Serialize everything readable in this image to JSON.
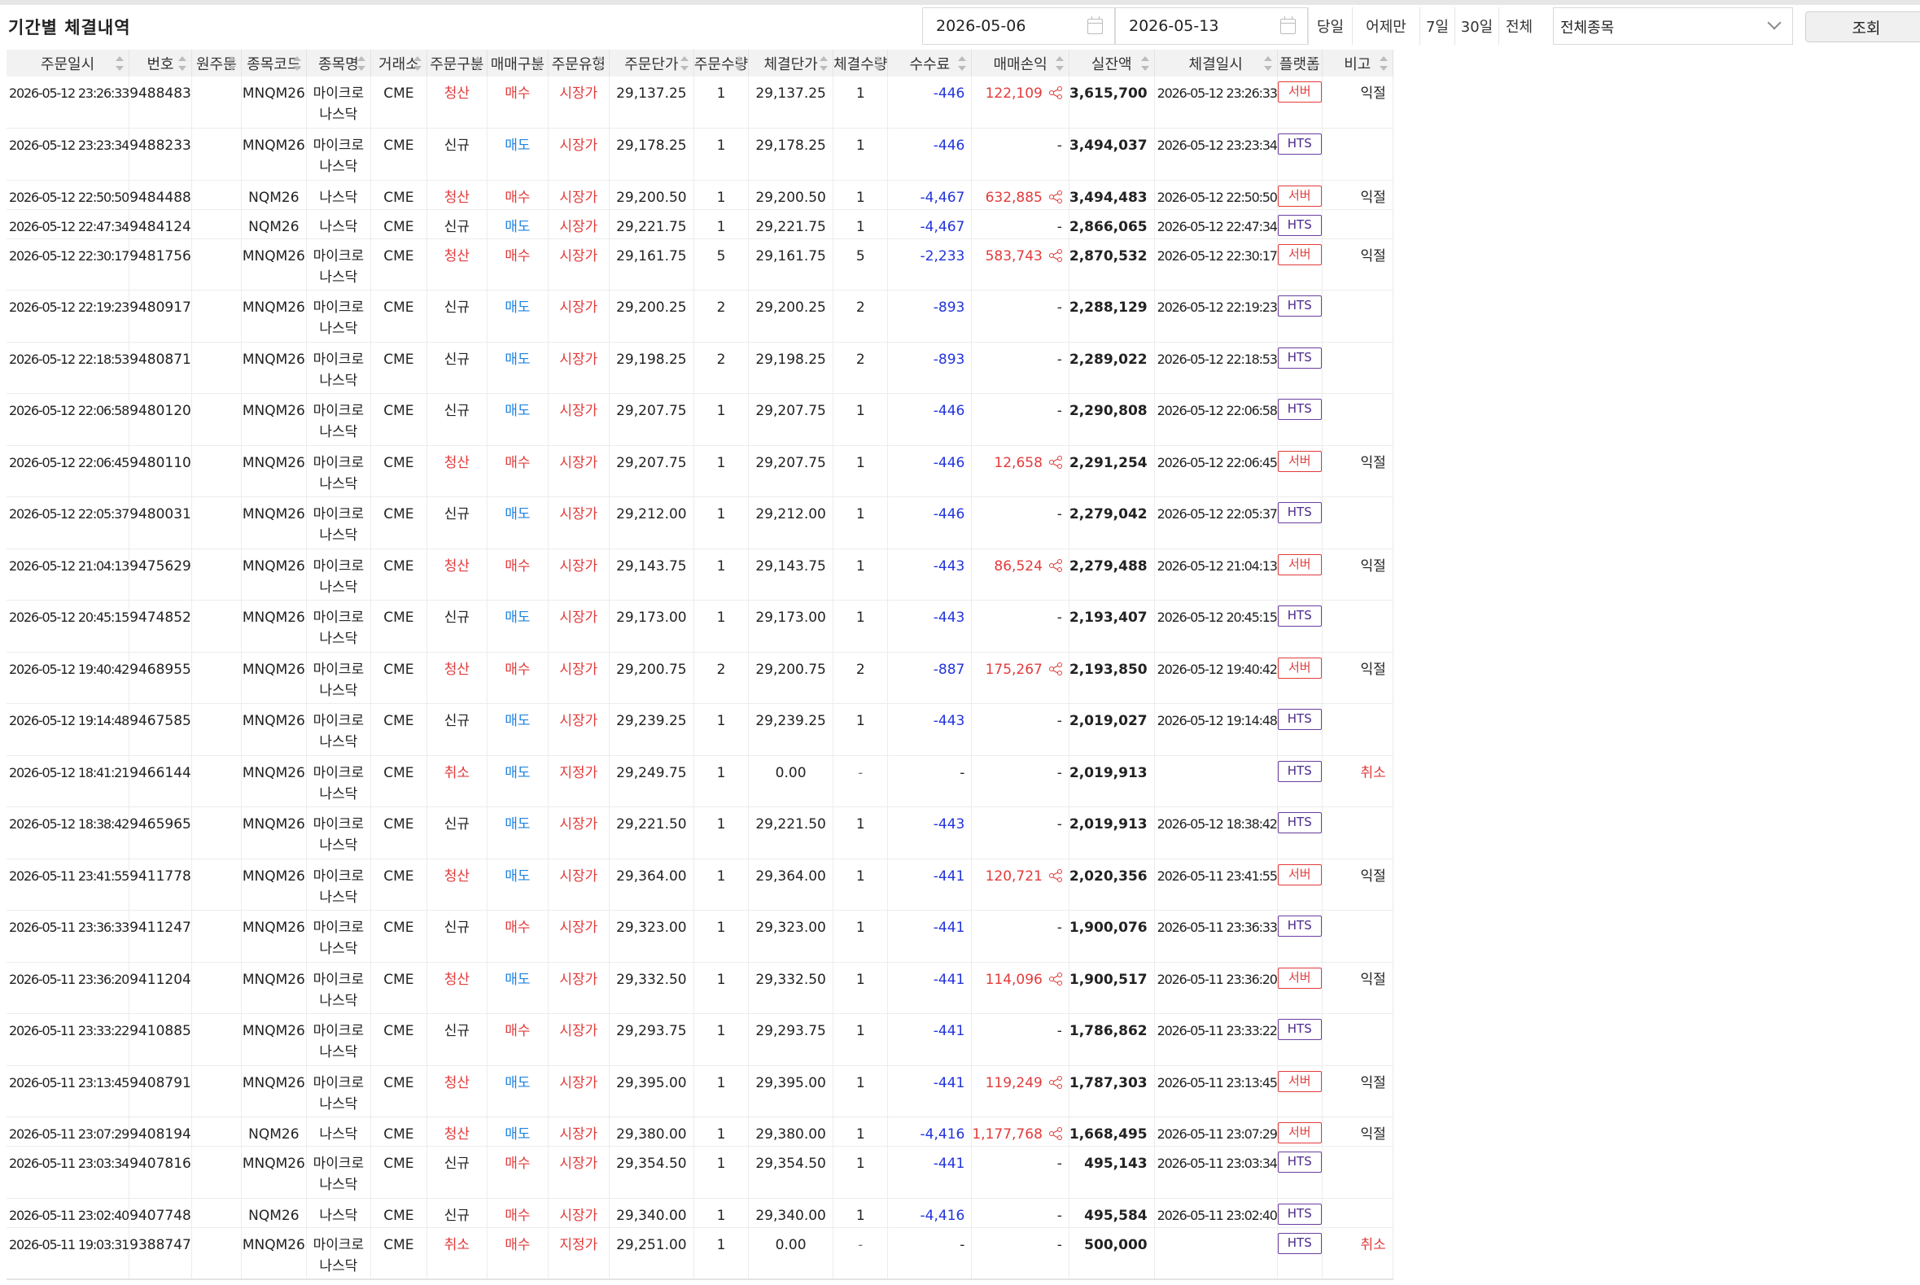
{
  "title": "기간별 체결내역",
  "filters": {
    "date_from": "2026-05-06",
    "date_to": "2026-05-13",
    "quick": [
      "당일",
      "어제만",
      "7일",
      "30일",
      "전체"
    ],
    "symbol_select": "전체종목",
    "search_label": "조회"
  },
  "columns": [
    "주문일시",
    "번호",
    "원주문",
    "종목코드",
    "종목명",
    "거래소",
    "주문구분",
    "매매구분",
    "주문유형",
    "주문단가",
    "주문수량",
    "체결단가",
    "체결수량",
    "수수료",
    "매매손익",
    "실잔액",
    "체결일시",
    "플랫폼",
    "비고"
  ],
  "colors": {
    "red": "#e23b3b",
    "blue": "#1e83e0",
    "navy": "#2233dd",
    "purple": "#6a3fa0"
  },
  "rows": [
    {
      "order_time": "2026-05-12 23:26:33",
      "no": "9488483",
      "orig": "",
      "code": "MNQM26",
      "name": "마이크로 나스닥",
      "exch": "CME",
      "order_kind": "청산",
      "side": "매수",
      "order_type": "시장가",
      "order_price": "29,137.25",
      "order_qty": "1",
      "fill_price": "29,137.25",
      "fill_qty": "1",
      "fee": "-446",
      "pnl": "122,109",
      "balance": "3,615,700",
      "fill_time": "2026-05-12 23:26:33",
      "platform": "서버",
      "note": "익절"
    },
    {
      "order_time": "2026-05-12 23:23:34",
      "no": "9488233",
      "orig": "",
      "code": "MNQM26",
      "name": "마이크로 나스닥",
      "exch": "CME",
      "order_kind": "신규",
      "side": "매도",
      "order_type": "시장가",
      "order_price": "29,178.25",
      "order_qty": "1",
      "fill_price": "29,178.25",
      "fill_qty": "1",
      "fee": "-446",
      "pnl": "-",
      "balance": "3,494,037",
      "fill_time": "2026-05-12 23:23:34",
      "platform": "HTS",
      "note": ""
    },
    {
      "order_time": "2026-05-12 22:50:50",
      "no": "9484488",
      "orig": "",
      "code": "NQM26",
      "name": "나스닥",
      "exch": "CME",
      "order_kind": "청산",
      "side": "매수",
      "order_type": "시장가",
      "order_price": "29,200.50",
      "order_qty": "1",
      "fill_price": "29,200.50",
      "fill_qty": "1",
      "fee": "-4,467",
      "pnl": "632,885",
      "balance": "3,494,483",
      "fill_time": "2026-05-12 22:50:50",
      "platform": "서버",
      "note": "익절"
    },
    {
      "order_time": "2026-05-12 22:47:34",
      "no": "9484124",
      "orig": "",
      "code": "NQM26",
      "name": "나스닥",
      "exch": "CME",
      "order_kind": "신규",
      "side": "매도",
      "order_type": "시장가",
      "order_price": "29,221.75",
      "order_qty": "1",
      "fill_price": "29,221.75",
      "fill_qty": "1",
      "fee": "-4,467",
      "pnl": "-",
      "balance": "2,866,065",
      "fill_time": "2026-05-12 22:47:34",
      "platform": "HTS",
      "note": ""
    },
    {
      "order_time": "2026-05-12 22:30:17",
      "no": "9481756",
      "orig": "",
      "code": "MNQM26",
      "name": "마이크로 나스닥",
      "exch": "CME",
      "order_kind": "청산",
      "side": "매수",
      "order_type": "시장가",
      "order_price": "29,161.75",
      "order_qty": "5",
      "fill_price": "29,161.75",
      "fill_qty": "5",
      "fee": "-2,233",
      "pnl": "583,743",
      "balance": "2,870,532",
      "fill_time": "2026-05-12 22:30:17",
      "platform": "서버",
      "note": "익절"
    },
    {
      "order_time": "2026-05-12 22:19:23",
      "no": "9480917",
      "orig": "",
      "code": "MNQM26",
      "name": "마이크로 나스닥",
      "exch": "CME",
      "order_kind": "신규",
      "side": "매도",
      "order_type": "시장가",
      "order_price": "29,200.25",
      "order_qty": "2",
      "fill_price": "29,200.25",
      "fill_qty": "2",
      "fee": "-893",
      "pnl": "-",
      "balance": "2,288,129",
      "fill_time": "2026-05-12 22:19:23",
      "platform": "HTS",
      "note": ""
    },
    {
      "order_time": "2026-05-12 22:18:53",
      "no": "9480871",
      "orig": "",
      "code": "MNQM26",
      "name": "마이크로 나스닥",
      "exch": "CME",
      "order_kind": "신규",
      "side": "매도",
      "order_type": "시장가",
      "order_price": "29,198.25",
      "order_qty": "2",
      "fill_price": "29,198.25",
      "fill_qty": "2",
      "fee": "-893",
      "pnl": "-",
      "balance": "2,289,022",
      "fill_time": "2026-05-12 22:18:53",
      "platform": "HTS",
      "note": ""
    },
    {
      "order_time": "2026-05-12 22:06:58",
      "no": "9480120",
      "orig": "",
      "code": "MNQM26",
      "name": "마이크로 나스닥",
      "exch": "CME",
      "order_kind": "신규",
      "side": "매도",
      "order_type": "시장가",
      "order_price": "29,207.75",
      "order_qty": "1",
      "fill_price": "29,207.75",
      "fill_qty": "1",
      "fee": "-446",
      "pnl": "-",
      "balance": "2,290,808",
      "fill_time": "2026-05-12 22:06:58",
      "platform": "HTS",
      "note": ""
    },
    {
      "order_time": "2026-05-12 22:06:45",
      "no": "9480110",
      "orig": "",
      "code": "MNQM26",
      "name": "마이크로 나스닥",
      "exch": "CME",
      "order_kind": "청산",
      "side": "매수",
      "order_type": "시장가",
      "order_price": "29,207.75",
      "order_qty": "1",
      "fill_price": "29,207.75",
      "fill_qty": "1",
      "fee": "-446",
      "pnl": "12,658",
      "balance": "2,291,254",
      "fill_time": "2026-05-12 22:06:45",
      "platform": "서버",
      "note": "익절"
    },
    {
      "order_time": "2026-05-12 22:05:37",
      "no": "9480031",
      "orig": "",
      "code": "MNQM26",
      "name": "마이크로 나스닥",
      "exch": "CME",
      "order_kind": "신규",
      "side": "매도",
      "order_type": "시장가",
      "order_price": "29,212.00",
      "order_qty": "1",
      "fill_price": "29,212.00",
      "fill_qty": "1",
      "fee": "-446",
      "pnl": "-",
      "balance": "2,279,042",
      "fill_time": "2026-05-12 22:05:37",
      "platform": "HTS",
      "note": ""
    },
    {
      "order_time": "2026-05-12 21:04:13",
      "no": "9475629",
      "orig": "",
      "code": "MNQM26",
      "name": "마이크로 나스닥",
      "exch": "CME",
      "order_kind": "청산",
      "side": "매수",
      "order_type": "시장가",
      "order_price": "29,143.75",
      "order_qty": "1",
      "fill_price": "29,143.75",
      "fill_qty": "1",
      "fee": "-443",
      "pnl": "86,524",
      "balance": "2,279,488",
      "fill_time": "2026-05-12 21:04:13",
      "platform": "서버",
      "note": "익절"
    },
    {
      "order_time": "2026-05-12 20:45:15",
      "no": "9474852",
      "orig": "",
      "code": "MNQM26",
      "name": "마이크로 나스닥",
      "exch": "CME",
      "order_kind": "신규",
      "side": "매도",
      "order_type": "시장가",
      "order_price": "29,173.00",
      "order_qty": "1",
      "fill_price": "29,173.00",
      "fill_qty": "1",
      "fee": "-443",
      "pnl": "-",
      "balance": "2,193,407",
      "fill_time": "2026-05-12 20:45:15",
      "platform": "HTS",
      "note": ""
    },
    {
      "order_time": "2026-05-12 19:40:42",
      "no": "9468955",
      "orig": "",
      "code": "MNQM26",
      "name": "마이크로 나스닥",
      "exch": "CME",
      "order_kind": "청산",
      "side": "매수",
      "order_type": "시장가",
      "order_price": "29,200.75",
      "order_qty": "2",
      "fill_price": "29,200.75",
      "fill_qty": "2",
      "fee": "-887",
      "pnl": "175,267",
      "balance": "2,193,850",
      "fill_time": "2026-05-12 19:40:42",
      "platform": "서버",
      "note": "익절"
    },
    {
      "order_time": "2026-05-12 19:14:48",
      "no": "9467585",
      "orig": "",
      "code": "MNQM26",
      "name": "마이크로 나스닥",
      "exch": "CME",
      "order_kind": "신규",
      "side": "매도",
      "order_type": "시장가",
      "order_price": "29,239.25",
      "order_qty": "1",
      "fill_price": "29,239.25",
      "fill_qty": "1",
      "fee": "-443",
      "pnl": "-",
      "balance": "2,019,027",
      "fill_time": "2026-05-12 19:14:48",
      "platform": "HTS",
      "note": ""
    },
    {
      "order_time": "2026-05-12 18:41:21",
      "no": "9466144",
      "orig": "",
      "code": "MNQM26",
      "name": "마이크로 나스닥",
      "exch": "CME",
      "order_kind": "취소",
      "side": "매도",
      "order_type": "지정가",
      "order_price": "29,249.75",
      "order_qty": "1",
      "fill_price": "0.00",
      "fill_qty": "-",
      "fee": "-",
      "pnl": "-",
      "balance": "2,019,913",
      "fill_time": "",
      "platform": "HTS",
      "note": "취소"
    },
    {
      "order_time": "2026-05-12 18:38:42",
      "no": "9465965",
      "orig": "",
      "code": "MNQM26",
      "name": "마이크로 나스닥",
      "exch": "CME",
      "order_kind": "신규",
      "side": "매도",
      "order_type": "시장가",
      "order_price": "29,221.50",
      "order_qty": "1",
      "fill_price": "29,221.50",
      "fill_qty": "1",
      "fee": "-443",
      "pnl": "-",
      "balance": "2,019,913",
      "fill_time": "2026-05-12 18:38:42",
      "platform": "HTS",
      "note": ""
    },
    {
      "order_time": "2026-05-11 23:41:55",
      "no": "9411778",
      "orig": "",
      "code": "MNQM26",
      "name": "마이크로 나스닥",
      "exch": "CME",
      "order_kind": "청산",
      "side": "매도",
      "order_type": "시장가",
      "order_price": "29,364.00",
      "order_qty": "1",
      "fill_price": "29,364.00",
      "fill_qty": "1",
      "fee": "-441",
      "pnl": "120,721",
      "balance": "2,020,356",
      "fill_time": "2026-05-11 23:41:55",
      "platform": "서버",
      "note": "익절"
    },
    {
      "order_time": "2026-05-11 23:36:33",
      "no": "9411247",
      "orig": "",
      "code": "MNQM26",
      "name": "마이크로 나스닥",
      "exch": "CME",
      "order_kind": "신규",
      "side": "매수",
      "order_type": "시장가",
      "order_price": "29,323.00",
      "order_qty": "1",
      "fill_price": "29,323.00",
      "fill_qty": "1",
      "fee": "-441",
      "pnl": "-",
      "balance": "1,900,076",
      "fill_time": "2026-05-11 23:36:33",
      "platform": "HTS",
      "note": ""
    },
    {
      "order_time": "2026-05-11 23:36:20",
      "no": "9411204",
      "orig": "",
      "code": "MNQM26",
      "name": "마이크로 나스닥",
      "exch": "CME",
      "order_kind": "청산",
      "side": "매도",
      "order_type": "시장가",
      "order_price": "29,332.50",
      "order_qty": "1",
      "fill_price": "29,332.50",
      "fill_qty": "1",
      "fee": "-441",
      "pnl": "114,096",
      "balance": "1,900,517",
      "fill_time": "2026-05-11 23:36:20",
      "platform": "서버",
      "note": "익절"
    },
    {
      "order_time": "2026-05-11 23:33:22",
      "no": "9410885",
      "orig": "",
      "code": "MNQM26",
      "name": "마이크로 나스닥",
      "exch": "CME",
      "order_kind": "신규",
      "side": "매수",
      "order_type": "시장가",
      "order_price": "29,293.75",
      "order_qty": "1",
      "fill_price": "29,293.75",
      "fill_qty": "1",
      "fee": "-441",
      "pnl": "-",
      "balance": "1,786,862",
      "fill_time": "2026-05-11 23:33:22",
      "platform": "HTS",
      "note": ""
    },
    {
      "order_time": "2026-05-11 23:13:45",
      "no": "9408791",
      "orig": "",
      "code": "MNQM26",
      "name": "마이크로 나스닥",
      "exch": "CME",
      "order_kind": "청산",
      "side": "매도",
      "order_type": "시장가",
      "order_price": "29,395.00",
      "order_qty": "1",
      "fill_price": "29,395.00",
      "fill_qty": "1",
      "fee": "-441",
      "pnl": "119,249",
      "balance": "1,787,303",
      "fill_time": "2026-05-11 23:13:45",
      "platform": "서버",
      "note": "익절"
    },
    {
      "order_time": "2026-05-11 23:07:29",
      "no": "9408194",
      "orig": "",
      "code": "NQM26",
      "name": "나스닥",
      "exch": "CME",
      "order_kind": "청산",
      "side": "매도",
      "order_type": "시장가",
      "order_price": "29,380.00",
      "order_qty": "1",
      "fill_price": "29,380.00",
      "fill_qty": "1",
      "fee": "-4,416",
      "pnl": "1,177,768",
      "balance": "1,668,495",
      "fill_time": "2026-05-11 23:07:29",
      "platform": "서버",
      "note": "익절"
    },
    {
      "order_time": "2026-05-11 23:03:34",
      "no": "9407816",
      "orig": "",
      "code": "MNQM26",
      "name": "마이크로 나스닥",
      "exch": "CME",
      "order_kind": "신규",
      "side": "매수",
      "order_type": "시장가",
      "order_price": "29,354.50",
      "order_qty": "1",
      "fill_price": "29,354.50",
      "fill_qty": "1",
      "fee": "-441",
      "pnl": "-",
      "balance": "495,143",
      "fill_time": "2026-05-11 23:03:34",
      "platform": "HTS",
      "note": ""
    },
    {
      "order_time": "2026-05-11 23:02:40",
      "no": "9407748",
      "orig": "",
      "code": "NQM26",
      "name": "나스닥",
      "exch": "CME",
      "order_kind": "신규",
      "side": "매수",
      "order_type": "시장가",
      "order_price": "29,340.00",
      "order_qty": "1",
      "fill_price": "29,340.00",
      "fill_qty": "1",
      "fee": "-4,416",
      "pnl": "-",
      "balance": "495,584",
      "fill_time": "2026-05-11 23:02:40",
      "platform": "HTS",
      "note": ""
    },
    {
      "order_time": "2026-05-11 19:03:31",
      "no": "9388747",
      "orig": "",
      "code": "MNQM26",
      "name": "마이크로 나스닥",
      "exch": "CME",
      "order_kind": "취소",
      "side": "매수",
      "order_type": "지정가",
      "order_price": "29,251.00",
      "order_qty": "1",
      "fill_price": "0.00",
      "fill_qty": "-",
      "fee": "-",
      "pnl": "-",
      "balance": "500,000",
      "fill_time": "",
      "platform": "HTS",
      "note": "취소"
    }
  ]
}
